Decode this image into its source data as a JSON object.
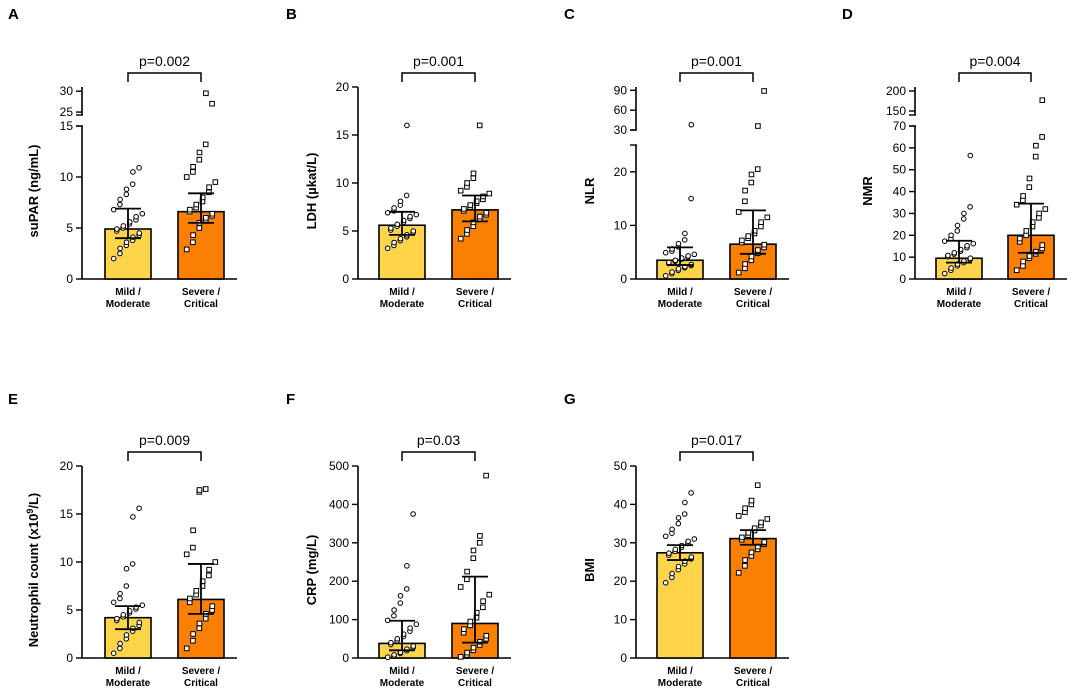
{
  "colors": {
    "mild": "#FDD44A",
    "severe": "#FB7F00"
  },
  "categories": [
    "Mild / Moderate",
    "Severe / Critical"
  ],
  "chart_data": [
    {
      "type": "bar",
      "panel": "A",
      "title": "",
      "ylabel": "suPAR (ng/mL)",
      "categories": [
        "Mild / Moderate",
        "Severe / Critical"
      ],
      "cat_lines": [
        [
          "Mild /",
          "Moderate"
        ],
        [
          "Severe /",
          "Critical"
        ]
      ],
      "values": [
        4.9,
        6.6
      ],
      "err_low": [
        4.0,
        5.5
      ],
      "err_high": [
        6.9,
        8.4
      ],
      "p_value": "p=0.002",
      "ylim": [
        0,
        31
      ],
      "y_ticks": [
        0,
        5,
        10,
        15,
        25,
        30
      ],
      "y_break": {
        "low_top": 15,
        "high_bottom": 24.3,
        "high_top": 31
      },
      "points": [
        [
          2.0,
          2.5,
          3.0,
          3.3,
          3.6,
          3.8,
          4.1,
          4.3,
          4.5,
          4.7,
          4.9,
          5.0,
          5.2,
          5.4,
          5.6,
          5.8,
          6.1,
          6.4,
          6.8,
          7.3,
          7.8,
          8.3,
          8.8,
          9.3,
          10.5,
          10.9
        ],
        [
          2.9,
          3.6,
          4.3,
          5.0,
          5.5,
          5.8,
          6.0,
          6.2,
          6.4,
          6.6,
          6.8,
          7.0,
          7.3,
          7.6,
          8.0,
          8.5,
          9.0,
          9.5,
          10.0,
          10.5,
          11.0,
          11.7,
          12.4,
          13.2,
          29.5,
          27.0
        ]
      ]
    },
    {
      "type": "bar",
      "panel": "B",
      "title": "",
      "ylabel": "LDH (µkat/L)",
      "categories": [
        "Mild / Moderate",
        "Severe / Critical"
      ],
      "cat_lines": [
        [
          "Mild /",
          "Moderate"
        ],
        [
          "Severe /",
          "Critical"
        ]
      ],
      "values": [
        5.6,
        7.2
      ],
      "err_low": [
        4.6,
        6.0
      ],
      "err_high": [
        7.0,
        8.7
      ],
      "p_value": "p=0.001",
      "ylim": [
        0,
        20
      ],
      "y_ticks": [
        0,
        5,
        10,
        15,
        20
      ],
      "points": [
        [
          3.2,
          3.5,
          3.8,
          4.0,
          4.2,
          4.4,
          4.6,
          4.8,
          5.0,
          5.1,
          5.3,
          5.5,
          5.7,
          5.9,
          6.1,
          6.3,
          6.5,
          6.7,
          6.9,
          7.1,
          7.4,
          7.7,
          8.1,
          8.7,
          16.0
        ],
        [
          4.2,
          4.7,
          5.1,
          5.5,
          5.9,
          6.2,
          6.5,
          6.7,
          6.9,
          7.1,
          7.3,
          7.5,
          7.7,
          7.9,
          8.1,
          8.3,
          8.6,
          8.9,
          9.2,
          9.6,
          10.0,
          10.5,
          11.0,
          16.0
        ]
      ]
    },
    {
      "type": "bar",
      "panel": "C",
      "title": "",
      "ylabel": "NLR",
      "categories": [
        "Mild / Moderate",
        "Severe / Critical"
      ],
      "cat_lines": [
        [
          "Mild /",
          "Moderate"
        ],
        [
          "Severe /",
          "Critical"
        ]
      ],
      "values": [
        3.5,
        6.5
      ],
      "err_low": [
        2.6,
        4.7
      ],
      "err_high": [
        5.9,
        12.8
      ],
      "p_value": "p=0.001",
      "ylim": [
        0,
        95
      ],
      "y_ticks": [
        0,
        10,
        20,
        30,
        60,
        90
      ],
      "y_break": {
        "low_top": 25,
        "high_bottom": 30,
        "high_top": 95
      },
      "points": [
        [
          0.6,
          1.0,
          1.3,
          1.6,
          1.9,
          2.1,
          2.3,
          2.5,
          2.7,
          2.9,
          3.1,
          3.3,
          3.5,
          3.7,
          3.9,
          4.1,
          4.3,
          4.6,
          4.9,
          5.2,
          5.6,
          6.0,
          6.6,
          7.3,
          8.5,
          15.0,
          38.0
        ],
        [
          1.2,
          2.0,
          2.8,
          3.5,
          4.2,
          4.8,
          5.4,
          5.9,
          6.4,
          6.8,
          7.2,
          7.6,
          8.0,
          8.5,
          9.0,
          9.8,
          10.6,
          11.5,
          12.5,
          14.5,
          16.5,
          18.0,
          19.5,
          20.5,
          36.0,
          89.0
        ]
      ]
    },
    {
      "type": "bar",
      "panel": "D",
      "title": "",
      "ylabel": "NMR",
      "categories": [
        "Mild / Moderate",
        "Severe / Critical"
      ],
      "cat_lines": [
        [
          "Mild /",
          "Moderate"
        ],
        [
          "Severe /",
          "Critical"
        ]
      ],
      "values": [
        9.5,
        20.0
      ],
      "err_low": [
        7.5,
        12.0
      ],
      "err_high": [
        17.5,
        34.5
      ],
      "p_value": "p=0.004",
      "ylim": [
        0,
        210
      ],
      "y_ticks": [
        0,
        10,
        20,
        30,
        40,
        50,
        60,
        70,
        150,
        200
      ],
      "y_break": {
        "low_top": 70,
        "high_bottom": 140,
        "high_top": 210
      },
      "points": [
        [
          2.5,
          4.0,
          5.0,
          6.0,
          6.8,
          7.5,
          8.2,
          8.9,
          9.5,
          10.2,
          10.8,
          11.4,
          12.0,
          12.7,
          13.5,
          14.3,
          15.2,
          16.2,
          17.3,
          18.5,
          20.0,
          22.0,
          24.5,
          27.5,
          30.0,
          33.0,
          56.5
        ],
        [
          4.0,
          6.0,
          8.0,
          9.5,
          10.5,
          11.5,
          12.5,
          14.0,
          15.5,
          17.0,
          18.5,
          20.0,
          22.0,
          24.0,
          26.0,
          28.0,
          30.0,
          32.0,
          34.0,
          36.0,
          38.0,
          42.0,
          46.0,
          56.0,
          61.0,
          65.0,
          177.0
        ]
      ]
    },
    {
      "type": "bar",
      "panel": "E",
      "title": "",
      "ylabel": "Neutrophil count (x10",
      "ylabel_sup": "9",
      "ylabel_end": "/L)",
      "categories": [
        "Mild / Moderate",
        "Severe / Critical"
      ],
      "cat_lines": [
        [
          "Mild /",
          "Moderate"
        ],
        [
          "Severe /",
          "Critical"
        ]
      ],
      "values": [
        4.2,
        6.1
      ],
      "err_low": [
        3.0,
        4.6
      ],
      "err_high": [
        5.4,
        9.8
      ],
      "p_value": "p=0.009",
      "ylim": [
        0,
        20
      ],
      "y_ticks": [
        0,
        5,
        10,
        15,
        20
      ],
      "points": [
        [
          0.5,
          1.0,
          1.5,
          2.0,
          2.4,
          2.8,
          3.1,
          3.4,
          3.7,
          3.9,
          4.1,
          4.3,
          4.5,
          4.7,
          4.9,
          5.1,
          5.3,
          5.5,
          5.8,
          6.2,
          6.7,
          7.5,
          9.3,
          9.8,
          14.7,
          15.6
        ],
        [
          1.0,
          1.8,
          2.5,
          3.1,
          3.6,
          4.1,
          4.6,
          5.0,
          5.4,
          5.8,
          6.2,
          6.6,
          7.0,
          7.5,
          8.0,
          8.6,
          9.2,
          10.0,
          10.8,
          11.5,
          13.3,
          17.3,
          17.5,
          17.6
        ]
      ]
    },
    {
      "type": "bar",
      "panel": "F",
      "title": "",
      "ylabel": "CRP (mg/L)",
      "categories": [
        "Mild / Moderate",
        "Severe / Critical"
      ],
      "cat_lines": [
        [
          "Mild /",
          "Moderate"
        ],
        [
          "Severe /",
          "Critical"
        ]
      ],
      "values": [
        38,
        90
      ],
      "err_low": [
        20,
        40
      ],
      "err_high": [
        97,
        212
      ],
      "p_value": "p=0.03",
      "ylim": [
        0,
        500
      ],
      "y_ticks": [
        0,
        100,
        200,
        300,
        400,
        500
      ],
      "points": [
        [
          2,
          5,
          8,
          12,
          15,
          19,
          23,
          27,
          31,
          35,
          40,
          45,
          50,
          56,
          62,
          70,
          78,
          88,
          98,
          110,
          125,
          143,
          162,
          180,
          240,
          375
        ],
        [
          3,
          8,
          14,
          20,
          27,
          34,
          42,
          50,
          58,
          66,
          75,
          85,
          95,
          105,
          118,
          132,
          148,
          165,
          185,
          205,
          225,
          260,
          280,
          300,
          318,
          475
        ]
      ]
    },
    {
      "type": "bar",
      "panel": "G",
      "title": "",
      "ylabel": "BMI",
      "categories": [
        "Mild / Moderate",
        "Severe / Critical"
      ],
      "cat_lines": [
        [
          "Mild /",
          "Moderate"
        ],
        [
          "Severe /",
          "Critical"
        ]
      ],
      "values": [
        27.4,
        31.1
      ],
      "err_low": [
        25.5,
        29.5
      ],
      "err_high": [
        29.4,
        33.3
      ],
      "p_value": "p=0.017",
      "ylim": [
        0,
        50
      ],
      "y_ticks": [
        0,
        10,
        20,
        30,
        40,
        50
      ],
      "points": [
        [
          19.6,
          21.0,
          22.0,
          23.0,
          23.8,
          24.5,
          25.2,
          25.8,
          26.3,
          26.8,
          27.3,
          27.8,
          28.3,
          28.8,
          29.3,
          29.8,
          30.4,
          31.0,
          31.7,
          32.5,
          33.5,
          35.0,
          36.5,
          37.5,
          40.5,
          43.0
        ],
        [
          22.2,
          24.0,
          25.5,
          26.6,
          27.5,
          28.3,
          29.0,
          29.6,
          30.2,
          30.8,
          31.4,
          32.0,
          32.6,
          33.2,
          33.8,
          34.5,
          35.3,
          36.2,
          37.0,
          38.0,
          39.0,
          40.0,
          41.0,
          45.0
        ]
      ]
    }
  ]
}
